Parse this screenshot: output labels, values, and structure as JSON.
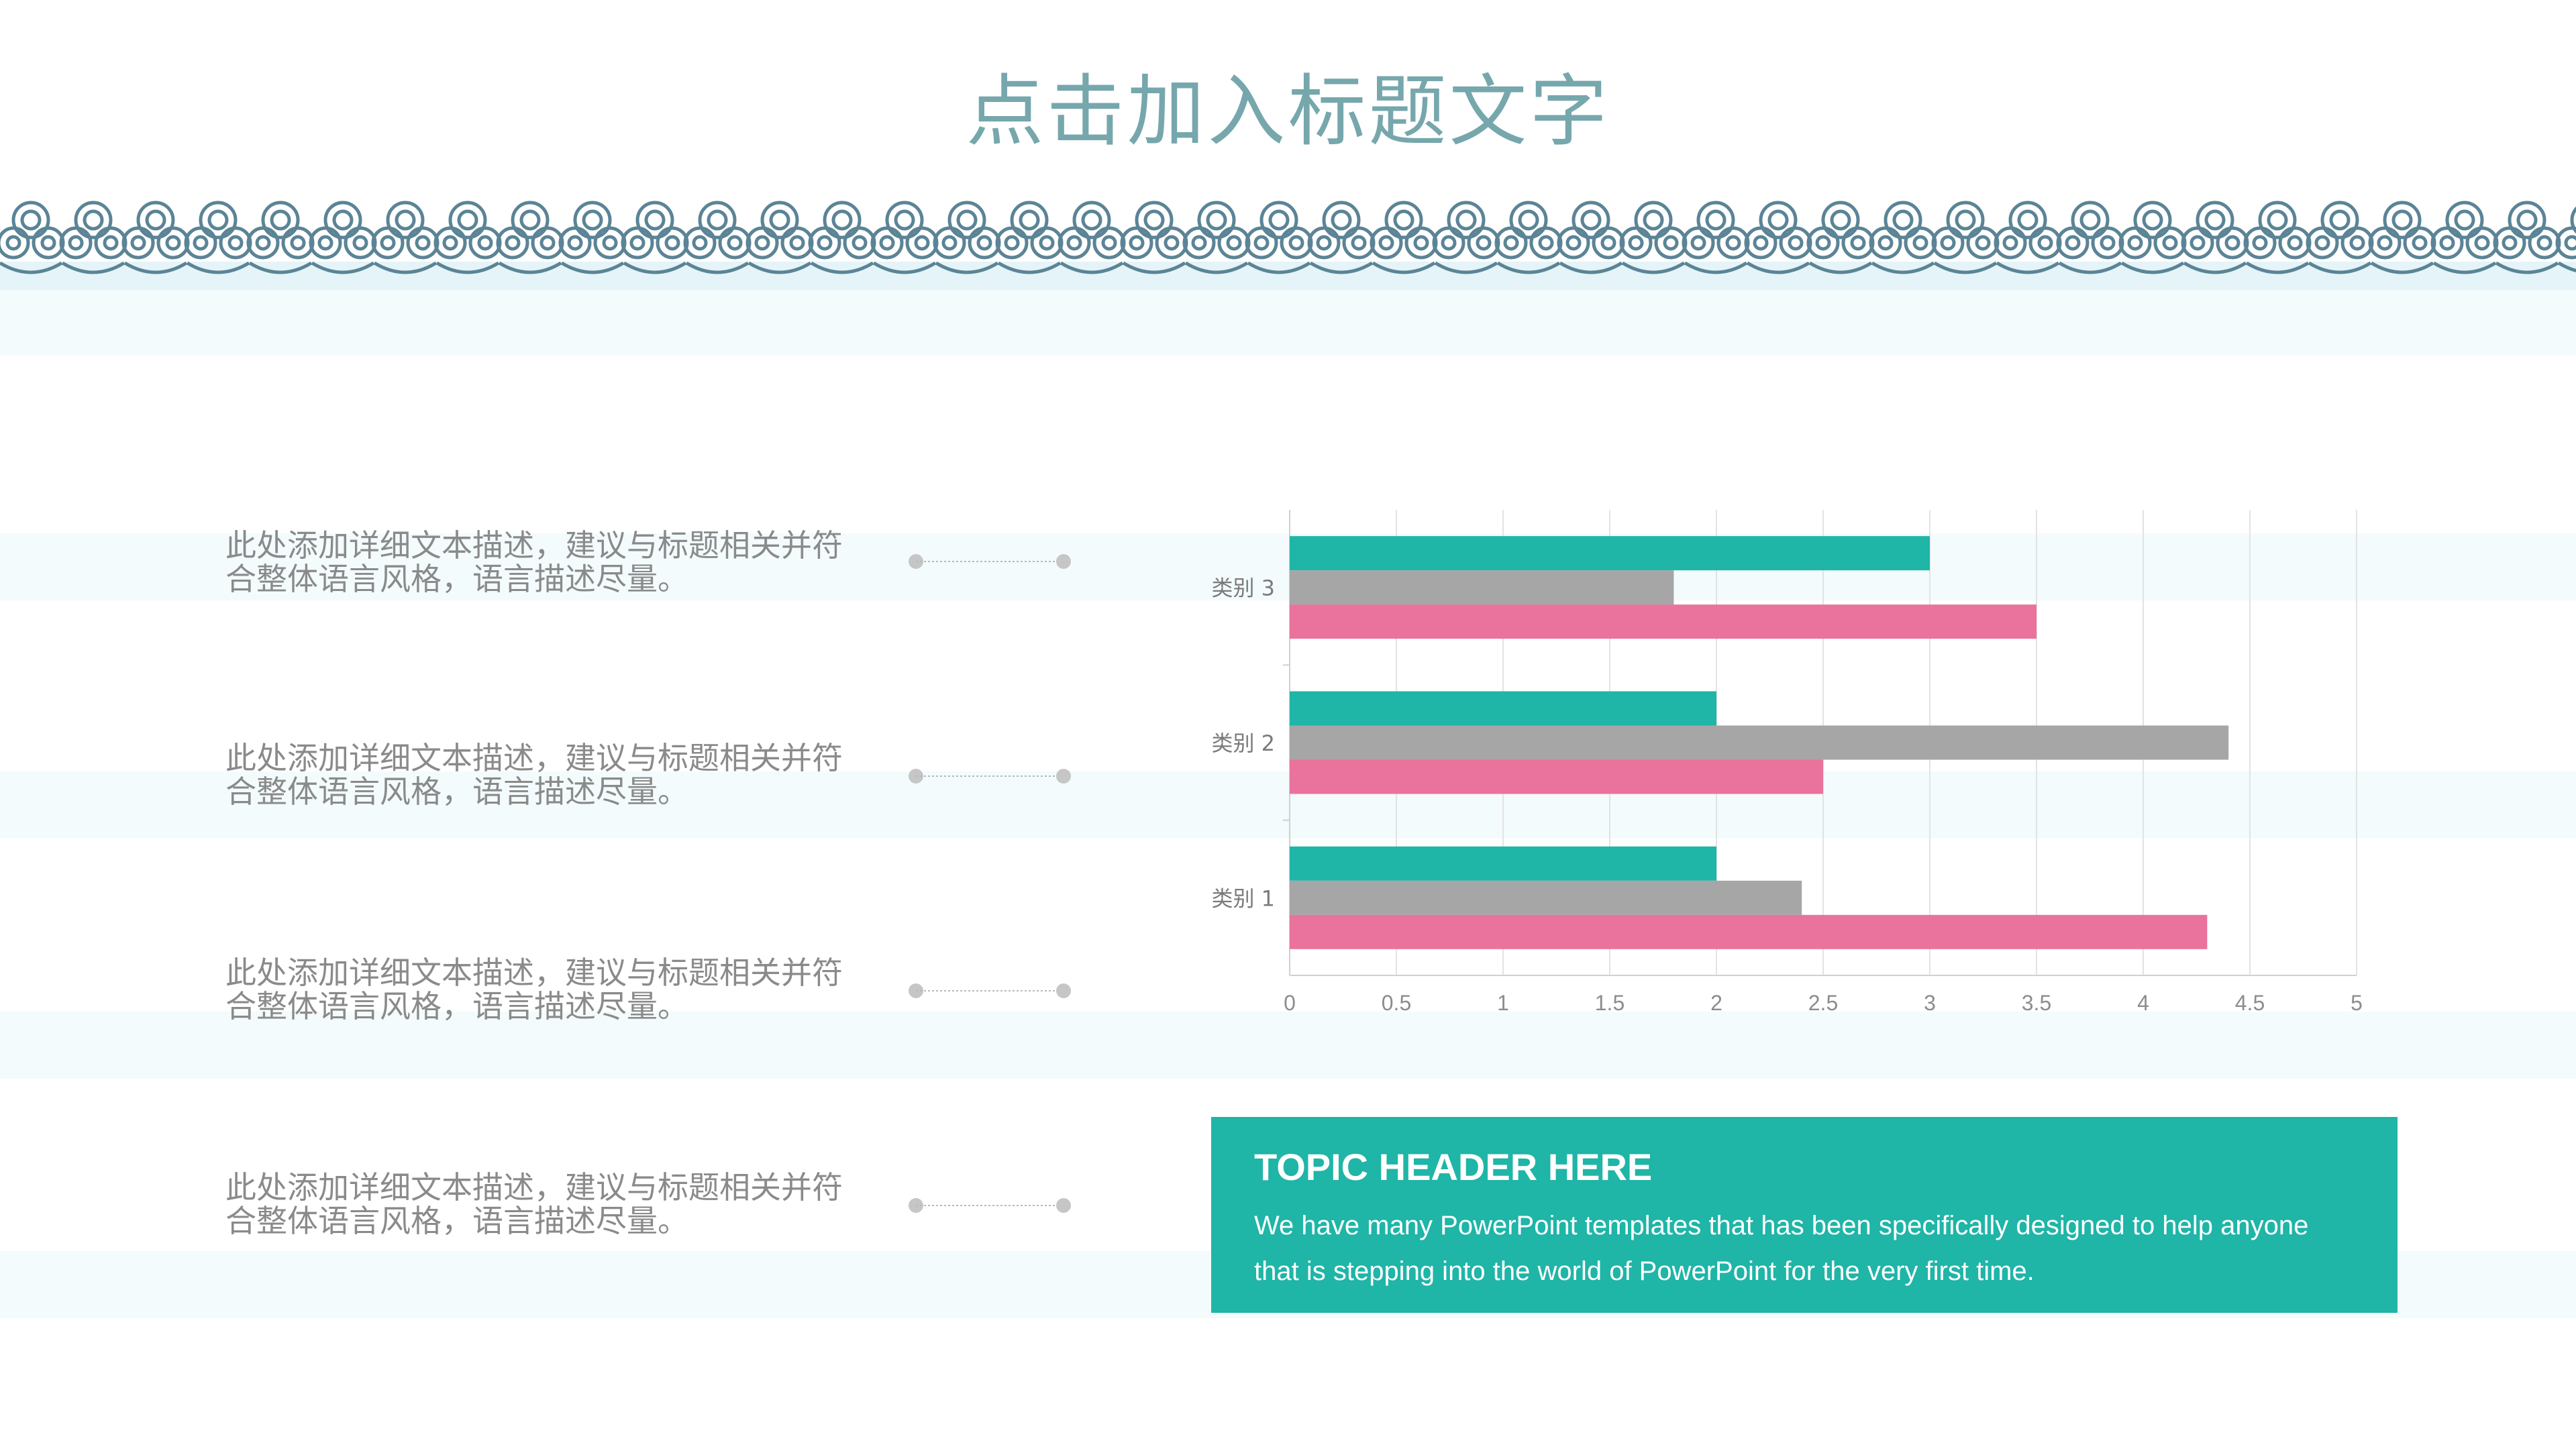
{
  "slide": {
    "title": "点击加入标题文字",
    "descriptions": [
      "此处添加详细文本描述，建议与标题相关并符合整体语言风格，语言描述尽量。",
      "此处添加详细文本描述，建议与标题相关并符合整体语言风格，语言描述尽量。",
      "此处添加详细文本描述，建议与标题相关并符合整体语言风格，语言描述尽量。",
      "此处添加详细文本描述，建议与标题相关并符合整体语言风格，语言描述尽量。"
    ],
    "topic": {
      "header": "TOPIC HEADER HERE",
      "body": "We have many PowerPoint templates that has been specifically designed to help anyone that is stepping into the world of PowerPoint for the very first time."
    }
  },
  "colors": {
    "title": "#76a7ac",
    "border": "#5b8496",
    "series1": "#1fb5a7",
    "series2": "#a6a6a6",
    "series3": "#e9739c",
    "topic_bg": "#1fb5a7"
  },
  "chart_data": {
    "type": "bar",
    "orientation": "horizontal",
    "categories": [
      "类别 1",
      "类别 2",
      "类别 3"
    ],
    "series": [
      {
        "values": [
          2.0,
          2.0,
          3.0
        ],
        "color": "#1fb5a7"
      },
      {
        "values": [
          2.4,
          4.4,
          1.8
        ],
        "color": "#a6a6a6"
      },
      {
        "values": [
          4.3,
          2.5,
          3.5
        ],
        "color": "#e9739c"
      }
    ],
    "xlim": [
      0,
      5
    ],
    "xticks": [
      "0",
      "0.5",
      "1",
      "1.5",
      "2",
      "2.5",
      "3",
      "3.5",
      "4",
      "4.5",
      "5"
    ],
    "grid": true,
    "legend": "none"
  }
}
